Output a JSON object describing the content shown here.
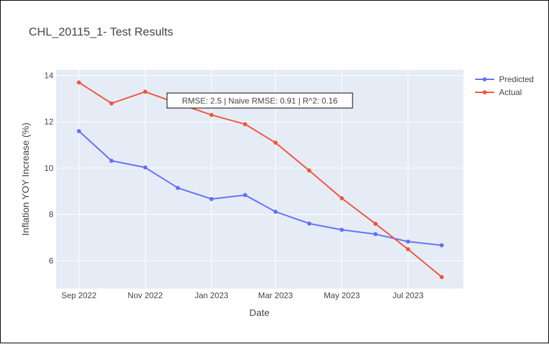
{
  "chart_data": {
    "type": "line",
    "title": "CHL_20115_1- Test Results",
    "xlabel": "Date",
    "ylabel": "Inflation YOY Increase (%)",
    "x": [
      "2022-09-01",
      "2022-10-01",
      "2022-11-01",
      "2022-12-01",
      "2023-01-01",
      "2023-02-01",
      "2023-03-01",
      "2023-04-01",
      "2023-05-01",
      "2023-06-01",
      "2023-07-01",
      "2023-08-01"
    ],
    "series": [
      {
        "name": "Predicted",
        "color": "#636efa",
        "values": [
          11.6,
          10.32,
          10.03,
          9.15,
          8.67,
          8.84,
          8.12,
          7.61,
          7.34,
          7.15,
          6.83,
          6.67
        ]
      },
      {
        "name": "Actual",
        "color": "#ef553b",
        "values": [
          13.7,
          12.8,
          13.3,
          12.8,
          12.3,
          11.9,
          11.1,
          9.9,
          8.7,
          7.6,
          6.5,
          5.3
        ]
      }
    ],
    "xticks": [
      {
        "date": "2022-09-01",
        "label": "Sep 2022"
      },
      {
        "date": "2022-11-01",
        "label": "Nov 2022"
      },
      {
        "date": "2023-01-01",
        "label": "Jan 2023"
      },
      {
        "date": "2023-03-01",
        "label": "Mar 2023"
      },
      {
        "date": "2023-05-01",
        "label": "May 2023"
      },
      {
        "date": "2023-07-01",
        "label": "Jul 2023"
      }
    ],
    "yticks": [
      6,
      8,
      10,
      12,
      14
    ],
    "xlim": [
      "2022-08-11",
      "2023-08-21"
    ],
    "ylim": [
      4.8,
      14.25
    ],
    "grid": true,
    "legend_position": "top-right",
    "annotation": "RMSE: 2.5 | Naive RMSE: 0.91 | R^2: 0.16",
    "colors": {
      "plot_background": "#e5ecf6",
      "grid": "#ffffff",
      "text": "#444444"
    }
  }
}
